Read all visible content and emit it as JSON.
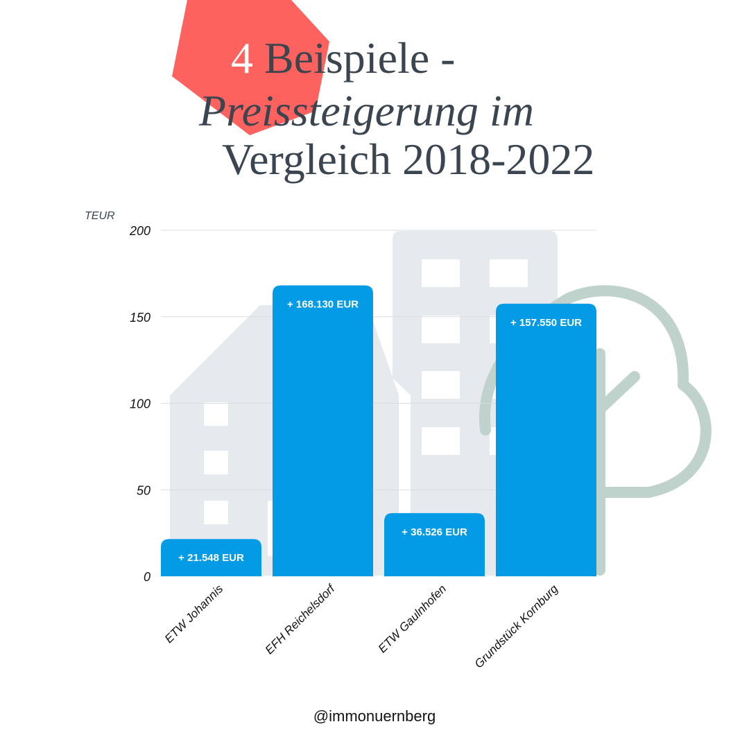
{
  "title": {
    "line1_number": "4",
    "line1_text": " Beispiele -",
    "line2": "Preissteigerung im",
    "line3": "Vergleich 2018-2022"
  },
  "footer": {
    "handle": "@immonuernberg"
  },
  "colors": {
    "bar": "#039be5",
    "title_text": "#3b4550",
    "accent_shape": "#fd625e",
    "building_bg": "#e6e9ed",
    "tree_outline": "#bfd3cc",
    "gridline": "#d9dde2"
  },
  "icons": [
    "building-icon",
    "building-icon",
    "tree-icon"
  ],
  "chart_data": {
    "type": "bar",
    "categories": [
      "ETW Johannis",
      "EFH Reichelsdorf",
      "ETW Gaulnhofen",
      "Grundstück Kornburg"
    ],
    "values": [
      21.548,
      168.13,
      36.526,
      157.55
    ],
    "data_labels": [
      "+ 21.548 EUR",
      "+ 168.130 EUR",
      "+ 36.526 EUR",
      "+ 157.550 EUR"
    ],
    "ylabel": "TEUR",
    "ylim": [
      0,
      200
    ],
    "yticks": [
      0,
      50,
      100,
      150,
      200
    ],
    "grid": true,
    "legend": "none"
  }
}
